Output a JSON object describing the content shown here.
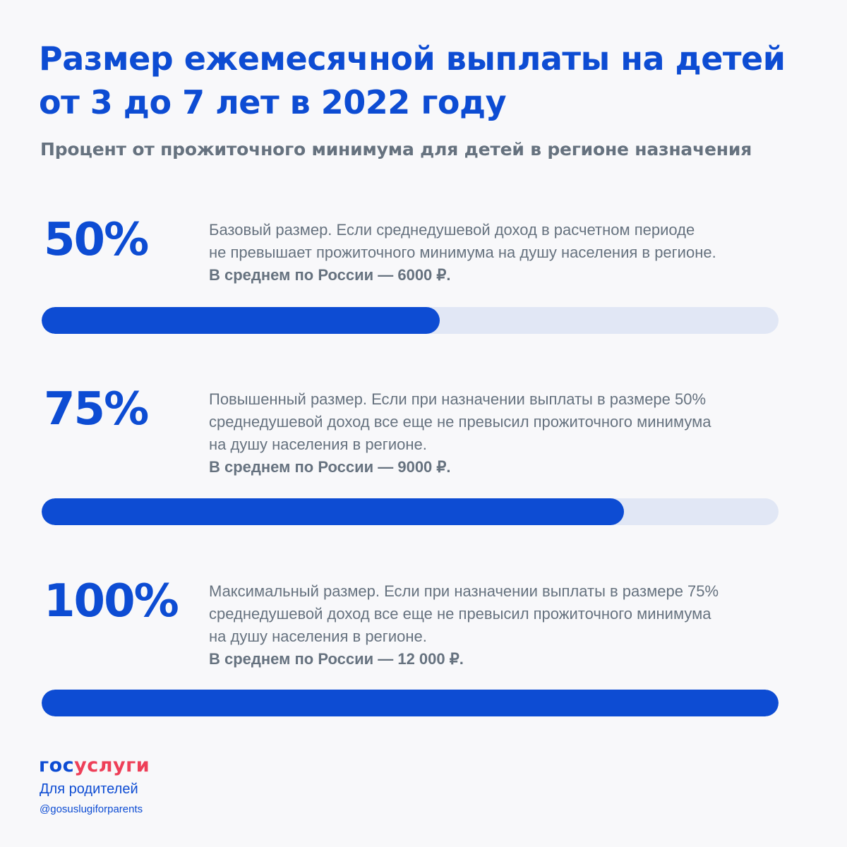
{
  "header": {
    "title_line1": "Размер ежемесячной выплаты на детей",
    "title_line2": "от 3 до 7 лет в 2022 году",
    "subtitle": "Процент от прожиточного минимума для детей в регионе назначения"
  },
  "tiers": [
    {
      "percent": "50%",
      "fill": 0.5,
      "lines": [
        "Базовый размер. Если среднедушевой доход в расчетном периоде",
        "не превышает прожиточного минимума на душу населения в регионе."
      ],
      "average": "В среднем по России — 6000 ₽."
    },
    {
      "percent": "75%",
      "fill": 0.75,
      "lines": [
        "Повышенный размер. Если при назначении выплаты в размере 50%",
        "среднедушевой доход все еще не превысил прожиточного минимума",
        "на душу населения в регионе."
      ],
      "average": "В среднем по России — 9000 ₽."
    },
    {
      "percent": "100%",
      "fill": 1.0,
      "lines": [
        "Максимальный размер. Если при назначении выплаты в размере 75%",
        "среднедушевой доход все еще не превысил прожиточного минимума",
        "на душу населения в регионе."
      ],
      "average": "В среднем по России — 12 000 ₽."
    }
  ],
  "footer": {
    "logo_part1": "гос",
    "logo_part2": "услуги",
    "logo_sub": "Для родителей",
    "handle": "@gosuslugiforparents"
  },
  "colors": {
    "accent": "#0d4cd3",
    "track": "#e1e7f5",
    "text_gray": "#66727f",
    "logo_red": "#ee3f58"
  }
}
